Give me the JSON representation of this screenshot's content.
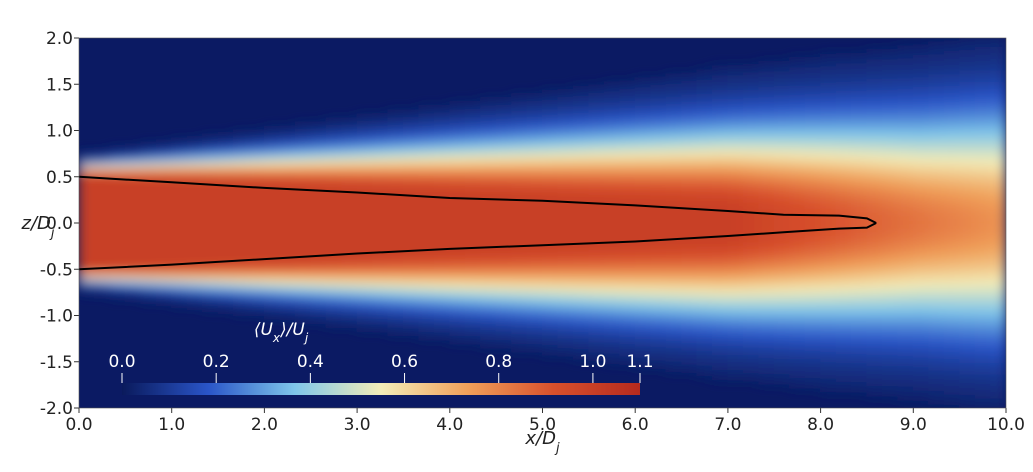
{
  "chart_data": {
    "type": "heatmap",
    "title": "",
    "xlabel": "x/D_j",
    "ylabel": "z/D_j",
    "xlim": [
      0.0,
      10.0
    ],
    "ylim": [
      -2.0,
      2.0
    ],
    "x_ticks": [
      "0.0",
      "1.0",
      "2.0",
      "3.0",
      "4.0",
      "5.0",
      "6.0",
      "7.0",
      "8.0",
      "9.0",
      "10.0"
    ],
    "y_ticks": [
      "2.0",
      "1.5",
      "1.0",
      "0.5",
      "0.0",
      "-0.5",
      "-1.0",
      "-1.5",
      "-2.0"
    ],
    "colorbar": {
      "title": "⟨U_x⟩/U_j",
      "range": [
        0.0,
        1.1
      ],
      "tick_values": [
        0.0,
        0.2,
        0.4,
        0.6,
        0.8,
        1.0,
        1.1
      ],
      "tick_labels": [
        "0.0",
        "0.2",
        "0.4",
        "0.6",
        "0.8",
        "1.0",
        "1.1"
      ],
      "colormap": [
        "#0a1a5c",
        "#2a55c8",
        "#7fc6ea",
        "#f3edb8",
        "#f0a05a",
        "#d8502c",
        "#b52a1e"
      ]
    },
    "field": {
      "centerline_value": 1.0,
      "jet_radius": 0.5,
      "core_color": "#c4462a",
      "background_color": "#0b1a63"
    },
    "contour": {
      "level": 1.0,
      "color": "#000000",
      "upper": [
        [
          0.0,
          0.5
        ],
        [
          1.0,
          0.44
        ],
        [
          2.0,
          0.38
        ],
        [
          3.0,
          0.33
        ],
        [
          4.0,
          0.27
        ],
        [
          5.0,
          0.24
        ],
        [
          6.0,
          0.19
        ],
        [
          7.0,
          0.13
        ],
        [
          7.6,
          0.09
        ],
        [
          8.2,
          0.08
        ],
        [
          8.5,
          0.05
        ],
        [
          8.6,
          0.0
        ]
      ],
      "lower": [
        [
          0.0,
          -0.5
        ],
        [
          1.0,
          -0.45
        ],
        [
          2.0,
          -0.39
        ],
        [
          3.0,
          -0.33
        ],
        [
          4.0,
          -0.28
        ],
        [
          5.0,
          -0.24
        ],
        [
          6.0,
          -0.2
        ],
        [
          7.0,
          -0.14
        ],
        [
          7.6,
          -0.1
        ],
        [
          8.2,
          -0.06
        ],
        [
          8.5,
          -0.05
        ],
        [
          8.6,
          0.0
        ]
      ]
    }
  }
}
